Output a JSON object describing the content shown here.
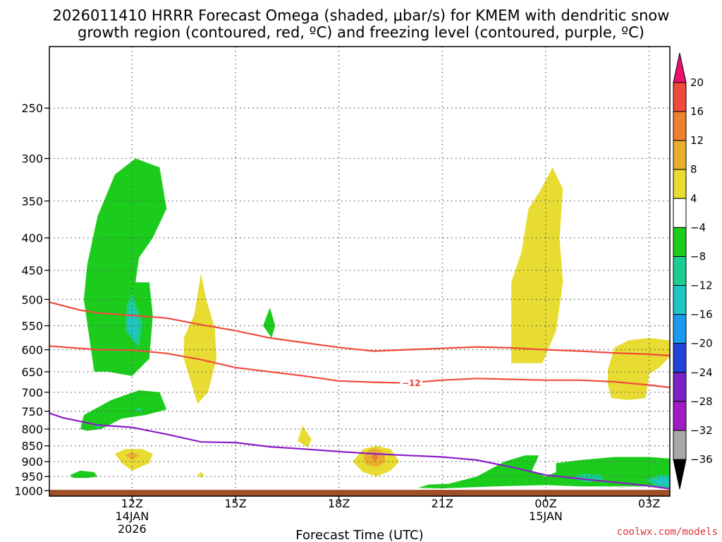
{
  "chart_data": {
    "type": "contour",
    "title_line1": "2026011410 HRRR Forecast Omega (shaded, μbar/s) for KMEM with dendritic snow",
    "title_line2": "growth region (contoured, red, ºC) and freezing level (contoured, purple, ºC)",
    "xlabel": "Forecast Time (UTC)",
    "credit": "coolwx.com/models",
    "x_range_hours": [
      9.6,
      27.6
    ],
    "y_range_hpa": [
      200,
      1020
    ],
    "y_ticks": [
      {
        "value": 250,
        "label": "250"
      },
      {
        "value": 300,
        "label": "300"
      },
      {
        "value": 350,
        "label": "350"
      },
      {
        "value": 400,
        "label": "400"
      },
      {
        "value": 450,
        "label": "450"
      },
      {
        "value": 500,
        "label": "500"
      },
      {
        "value": 550,
        "label": "550"
      },
      {
        "value": 600,
        "label": "600"
      },
      {
        "value": 650,
        "label": "650"
      },
      {
        "value": 700,
        "label": "700"
      },
      {
        "value": 750,
        "label": "750"
      },
      {
        "value": 800,
        "label": "800"
      },
      {
        "value": 850,
        "label": "850"
      },
      {
        "value": 900,
        "label": "900"
      },
      {
        "value": 950,
        "label": "950"
      },
      {
        "value": 1000,
        "label": "1000"
      }
    ],
    "x_ticks": [
      {
        "hour": 12,
        "label": "12Z",
        "sub1": "14JAN",
        "sub2": "2026"
      },
      {
        "hour": 15,
        "label": "15Z",
        "sub1": "",
        "sub2": ""
      },
      {
        "hour": 18,
        "label": "18Z",
        "sub1": "",
        "sub2": ""
      },
      {
        "hour": 21,
        "label": "21Z",
        "sub1": "",
        "sub2": ""
      },
      {
        "hour": 24,
        "label": "00Z",
        "sub1": "15JAN",
        "sub2": ""
      },
      {
        "hour": 27,
        "label": "03Z",
        "sub1": "",
        "sub2": ""
      }
    ],
    "colorbar": {
      "levels": [
        "20",
        "16",
        "12",
        "8",
        "4",
        "−4",
        "−8",
        "−12",
        "−16",
        "−20",
        "−24",
        "−28",
        "−32",
        "−36"
      ],
      "colors": [
        "#e8126e",
        "#f04a3c",
        "#ee8030",
        "#eaae2e",
        "#e8dc32",
        "#ffffff",
        "#1ccc1c",
        "#1ccc90",
        "#1ec6c6",
        "#1a9aee",
        "#2244dd",
        "#7a22c8",
        "#a01cc4",
        "#a8a8a8",
        "#000000"
      ]
    },
    "colors": {
      "dgz": "#f04a3c",
      "freezing": "#8a1cc8",
      "ground": "#a05028",
      "pos4": "#e8dc32",
      "pos8": "#eaae2e",
      "pos12": "#ee8030",
      "neg4": "#1ccc1c",
      "neg8": "#1ccc90",
      "neg12": "#1ec6c6"
    },
    "dgz_lines": [
      {
        "name": "dgz-top",
        "points": [
          [
            9.6,
            505
          ],
          [
            10.5,
            520
          ],
          [
            11,
            525
          ],
          [
            12,
            530
          ],
          [
            13,
            535
          ],
          [
            14,
            548
          ],
          [
            15,
            560
          ],
          [
            16,
            575
          ],
          [
            17,
            585
          ],
          [
            18,
            595
          ],
          [
            19,
            603
          ],
          [
            20,
            600
          ],
          [
            21,
            597
          ],
          [
            22,
            594
          ],
          [
            23,
            596
          ],
          [
            24,
            600
          ],
          [
            25,
            603
          ],
          [
            26,
            607
          ],
          [
            27,
            610
          ],
          [
            27.6,
            613
          ]
        ]
      },
      {
        "name": "dgz-bottom",
        "points": [
          [
            9.6,
            592
          ],
          [
            10.5,
            597
          ],
          [
            11,
            600
          ],
          [
            12,
            601
          ],
          [
            13,
            608
          ],
          [
            14,
            622
          ],
          [
            15,
            640
          ],
          [
            16,
            650
          ],
          [
            17,
            660
          ],
          [
            18,
            672
          ],
          [
            19,
            675
          ],
          [
            20,
            677
          ],
          [
            21,
            670
          ],
          [
            22,
            666
          ],
          [
            23,
            668
          ],
          [
            24,
            670
          ],
          [
            25,
            670
          ],
          [
            26,
            674
          ],
          [
            27,
            682
          ],
          [
            27.6,
            688
          ]
        ]
      }
    ],
    "dgz_label": "−12",
    "freezing_line": [
      [
        9.6,
        755
      ],
      [
        10,
        768
      ],
      [
        11,
        788
      ],
      [
        12,
        795
      ],
      [
        13,
        815
      ],
      [
        14,
        838
      ],
      [
        15,
        840
      ],
      [
        16,
        853
      ],
      [
        17,
        860
      ],
      [
        18,
        868
      ],
      [
        19,
        875
      ],
      [
        20,
        880
      ],
      [
        21,
        885
      ],
      [
        22,
        895
      ],
      [
        23,
        918
      ],
      [
        24,
        945
      ],
      [
        25,
        958
      ],
      [
        26,
        970
      ],
      [
        27,
        983
      ],
      [
        27.6,
        993
      ]
    ],
    "omega_regions": [
      {
        "name": "neg4-upper-column",
        "level": "neg4",
        "points": [
          [
            10.9,
            650
          ],
          [
            10.6,
            500
          ],
          [
            10.7,
            440
          ],
          [
            11.0,
            370
          ],
          [
            11.5,
            318
          ],
          [
            12.1,
            300
          ],
          [
            12.8,
            310
          ],
          [
            13.0,
            360
          ],
          [
            12.6,
            400
          ],
          [
            12.2,
            430
          ],
          [
            12.1,
            470
          ],
          [
            12.5,
            470
          ],
          [
            12.6,
            530
          ],
          [
            12.5,
            620
          ],
          [
            12.0,
            660
          ],
          [
            11.3,
            650
          ]
        ]
      },
      {
        "name": "neg8-upper-column",
        "level": "neg8",
        "points": [
          [
            12.0,
            490
          ],
          [
            12.3,
            545
          ],
          [
            12.2,
            595
          ],
          [
            11.8,
            560
          ],
          [
            11.85,
            510
          ]
        ]
      },
      {
        "name": "neg12-upper-column",
        "level": "neg12",
        "points": [
          [
            11.95,
            510
          ],
          [
            12.2,
            550
          ],
          [
            12.05,
            585
          ],
          [
            11.85,
            550
          ]
        ]
      },
      {
        "name": "neg4-750-blob",
        "level": "neg4",
        "points": [
          [
            10.5,
            800
          ],
          [
            10.6,
            760
          ],
          [
            11.4,
            720
          ],
          [
            12.2,
            695
          ],
          [
            12.8,
            700
          ],
          [
            13.0,
            745
          ],
          [
            12.4,
            760
          ],
          [
            11.7,
            770
          ],
          [
            11.1,
            800
          ],
          [
            10.7,
            805
          ]
        ]
      },
      {
        "name": "neg8-750-a",
        "level": "neg8",
        "points": [
          [
            12.1,
            745
          ],
          [
            12.2,
            740
          ],
          [
            12.3,
            748
          ],
          [
            12.2,
            752
          ]
        ]
      },
      {
        "name": "neg8-750-b",
        "level": "neg8",
        "points": [
          [
            10.95,
            795
          ],
          [
            11.0,
            785
          ],
          [
            11.1,
            790
          ],
          [
            11.0,
            800
          ]
        ]
      },
      {
        "name": "neg4-950-blob",
        "level": "neg4",
        "points": [
          [
            10.2,
            945
          ],
          [
            10.5,
            930
          ],
          [
            10.9,
            935
          ],
          [
            11.0,
            950
          ],
          [
            10.7,
            955
          ],
          [
            10.3,
            955
          ]
        ]
      },
      {
        "name": "neg4-sliver-550",
        "level": "neg4",
        "points": [
          [
            15.8,
            550
          ],
          [
            16.0,
            515
          ],
          [
            16.15,
            550
          ],
          [
            16.05,
            575
          ]
        ]
      },
      {
        "name": "pos4-14z-spike",
        "level": "pos4",
        "points": [
          [
            13.9,
            730
          ],
          [
            13.5,
            620
          ],
          [
            13.5,
            575
          ],
          [
            13.8,
            530
          ],
          [
            14.0,
            455
          ],
          [
            14.15,
            500
          ],
          [
            14.4,
            555
          ],
          [
            14.45,
            620
          ],
          [
            14.2,
            700
          ]
        ]
      },
      {
        "name": "pos4-12z-lower",
        "level": "pos4",
        "points": [
          [
            11.5,
            875
          ],
          [
            11.8,
            860
          ],
          [
            12.3,
            860
          ],
          [
            12.6,
            875
          ],
          [
            12.5,
            905
          ],
          [
            12.0,
            930
          ],
          [
            11.7,
            905
          ]
        ]
      },
      {
        "name": "pos8-12z-lower",
        "level": "pos8",
        "points": [
          [
            11.8,
            880
          ],
          [
            12.0,
            868
          ],
          [
            12.2,
            880
          ],
          [
            12.0,
            895
          ]
        ]
      },
      {
        "name": "pos4-17z-spot",
        "level": "pos4",
        "points": [
          [
            16.8,
            835
          ],
          [
            16.95,
            790
          ],
          [
            17.2,
            830
          ],
          [
            17.1,
            855
          ]
        ]
      },
      {
        "name": "pos4-14z-dot",
        "level": "pos4",
        "points": [
          [
            13.9,
            945
          ],
          [
            14.0,
            935
          ],
          [
            14.1,
            945
          ],
          [
            14.0,
            955
          ]
        ]
      },
      {
        "name": "pos4-19z-blob",
        "level": "pos4",
        "points": [
          [
            18.4,
            900
          ],
          [
            18.7,
            860
          ],
          [
            19.1,
            850
          ],
          [
            19.5,
            860
          ],
          [
            19.75,
            900
          ],
          [
            19.5,
            930
          ],
          [
            19.1,
            950
          ],
          [
            18.7,
            935
          ]
        ]
      },
      {
        "name": "pos8-19z-blob",
        "level": "pos8",
        "points": [
          [
            18.7,
            885
          ],
          [
            18.9,
            860
          ],
          [
            19.1,
            858
          ],
          [
            19.3,
            870
          ],
          [
            19.35,
            900
          ],
          [
            19.1,
            918
          ],
          [
            18.8,
            910
          ]
        ]
      },
      {
        "name": "pos12-19z-blob",
        "level": "pos12",
        "points": [
          [
            18.95,
            885
          ],
          [
            19.05,
            870
          ],
          [
            19.15,
            885
          ],
          [
            19.05,
            900
          ]
        ]
      },
      {
        "name": "pos4-00z-plume",
        "level": "pos4",
        "points": [
          [
            23.0,
            630
          ],
          [
            23.0,
            470
          ],
          [
            23.3,
            420
          ],
          [
            23.5,
            360
          ],
          [
            23.8,
            340
          ],
          [
            24.2,
            310
          ],
          [
            24.5,
            335
          ],
          [
            24.4,
            400
          ],
          [
            24.5,
            470
          ],
          [
            24.3,
            560
          ],
          [
            23.9,
            630
          ]
        ]
      },
      {
        "name": "pos4-03z-blob",
        "level": "pos4",
        "points": [
          [
            25.8,
            645
          ],
          [
            26.0,
            595
          ],
          [
            26.4,
            580
          ],
          [
            27.0,
            575
          ],
          [
            27.6,
            580
          ],
          [
            27.6,
            615
          ],
          [
            27.3,
            640
          ],
          [
            27.0,
            655
          ],
          [
            26.9,
            715
          ],
          [
            26.4,
            720
          ],
          [
            25.9,
            715
          ],
          [
            25.8,
            680
          ]
        ]
      },
      {
        "name": "neg4-lower-00z",
        "level": "neg4",
        "points": [
          [
            20.3,
            990
          ],
          [
            20.6,
            978
          ],
          [
            21.2,
            975
          ],
          [
            22.0,
            950
          ],
          [
            22.8,
            900
          ],
          [
            23.4,
            880
          ],
          [
            23.8,
            880
          ],
          [
            23.6,
            930
          ],
          [
            24.0,
            950
          ],
          [
            24.3,
            935
          ],
          [
            24.3,
            905
          ],
          [
            25.0,
            895
          ],
          [
            26.0,
            885
          ],
          [
            27.0,
            885
          ],
          [
            27.6,
            890
          ],
          [
            27.6,
            980
          ],
          [
            27.0,
            985
          ],
          [
            26.0,
            985
          ],
          [
            25.0,
            985
          ],
          [
            24.0,
            980
          ],
          [
            22.5,
            985
          ],
          [
            21.0,
            992
          ]
        ]
      },
      {
        "name": "neg8-lower-01z",
        "level": "neg8",
        "points": [
          [
            24.7,
            955
          ],
          [
            25.1,
            940
          ],
          [
            25.6,
            945
          ],
          [
            25.7,
            960
          ],
          [
            25.2,
            970
          ]
        ]
      },
      {
        "name": "neg8-lower-03z",
        "level": "neg8",
        "points": [
          [
            26.9,
            960
          ],
          [
            27.3,
            945
          ],
          [
            27.6,
            945
          ],
          [
            27.6,
            990
          ],
          [
            27.2,
            985
          ]
        ]
      },
      {
        "name": "neg12-lower-03z",
        "level": "neg12",
        "points": [
          [
            27.15,
            965
          ],
          [
            27.4,
            955
          ],
          [
            27.6,
            958
          ],
          [
            27.6,
            980
          ],
          [
            27.3,
            978
          ]
        ]
      }
    ]
  }
}
